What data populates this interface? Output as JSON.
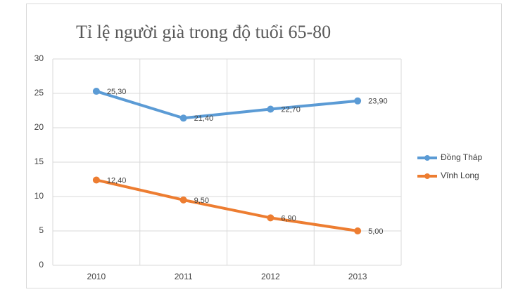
{
  "chart_data": {
    "type": "line",
    "title": "Tỉ lệ người già trong độ tuổi 65-80",
    "categories": [
      "2010",
      "2011",
      "2012",
      "2013"
    ],
    "series": [
      {
        "name": "Đồng Tháp",
        "color": "#5b9bd5",
        "values": [
          25.3,
          21.4,
          22.7,
          23.9
        ],
        "value_labels": [
          "25,30",
          "21,40",
          "22,70",
          "23,90"
        ]
      },
      {
        "name": "Vĩnh Long",
        "color": "#ed7d31",
        "values": [
          12.4,
          9.5,
          6.9,
          5.0
        ],
        "value_labels": [
          "12,40",
          "9,50",
          "6,90",
          "5,00"
        ]
      }
    ],
    "ylim": [
      0,
      30
    ],
    "yticks": [
      0,
      5,
      10,
      15,
      20,
      25,
      30
    ],
    "grid": true,
    "legend": "right"
  }
}
